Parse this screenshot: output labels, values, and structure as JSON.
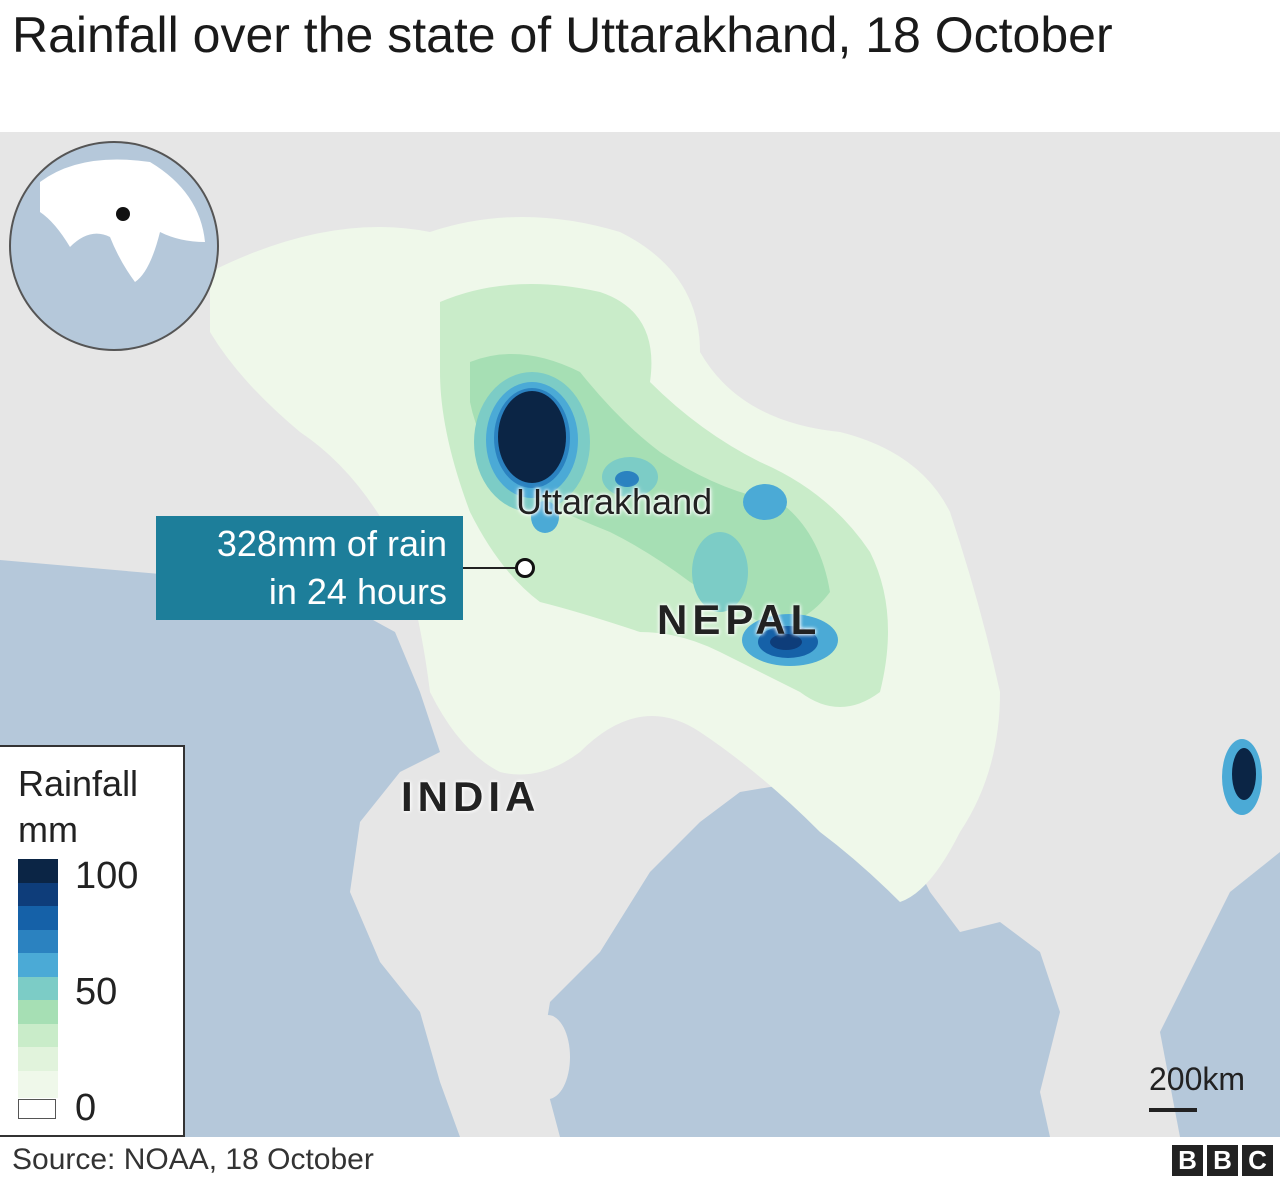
{
  "title": "Rainfall over the state of Uttarakhand, 18 October",
  "labels": {
    "state": "Uttarakhand",
    "callout_line1": "328mm of rain",
    "callout_line2": "in 24 hours",
    "country_nepal": "NEPAL",
    "country_india": "INDIA"
  },
  "legend": {
    "title_line1": "Rainfall",
    "title_line2": "mm",
    "tick_top": "100",
    "tick_mid": "50",
    "tick_low": "0",
    "colors": [
      "#0b2545",
      "#0e3d7a",
      "#1561a8",
      "#2b82c0",
      "#4baad6",
      "#7cccc6",
      "#a6dfb4",
      "#c9ecc9",
      "#e1f3dc",
      "#eff8ea"
    ]
  },
  "scale_bar": "200km",
  "source": "Source: NOAA, 18 October",
  "logo": "BBC",
  "colors": {
    "land": "#e6e6e6",
    "sea": "#b5c8da",
    "callout": "#1d7e9a",
    "max_rain": "#0b2545"
  }
}
